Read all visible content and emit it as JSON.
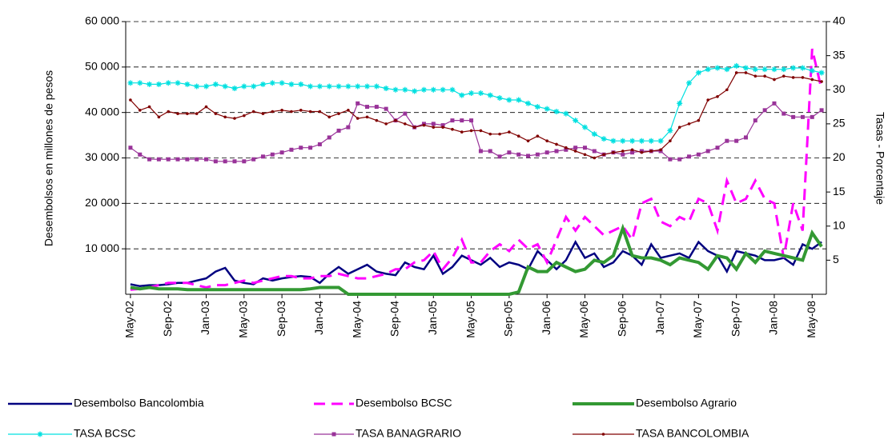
{
  "chart_data": {
    "type": "line",
    "ylabel": "Desembolsos en millones de pesos",
    "y2label": "Tasas - Porcentaje",
    "categories": [
      "May-02",
      null,
      null,
      null,
      "Sep-02",
      null,
      null,
      null,
      "Jan-03",
      null,
      null,
      null,
      "May-03",
      null,
      null,
      null,
      "Sep-03",
      null,
      null,
      null,
      "Jan-04",
      null,
      null,
      null,
      "May-04",
      null,
      null,
      null,
      "Sep-04",
      null,
      null,
      null,
      "Jan-05",
      null,
      null,
      null,
      "May-05",
      null,
      null,
      null,
      "Sep-05",
      null,
      null,
      null,
      "Jan-06",
      null,
      null,
      null,
      "May-06",
      null,
      null,
      null,
      "Sep-06",
      null,
      null,
      null,
      "Jan-07",
      null,
      null,
      null,
      "May-07",
      null,
      null,
      null,
      "Sep-07",
      null,
      null,
      null,
      "Jan-08",
      null,
      null,
      null,
      "May-08",
      null
    ],
    "ylim": [
      0,
      60000
    ],
    "yticks": [
      {
        "value": 10000,
        "label": "10 000"
      },
      {
        "value": 20000,
        "label": "20 000"
      },
      {
        "value": 30000,
        "label": "30 000"
      },
      {
        "value": 40000,
        "label": "40 000"
      },
      {
        "value": 50000,
        "label": "50 000"
      },
      {
        "value": 60000,
        "label": "60 000"
      }
    ],
    "y2lim": [
      0,
      40
    ],
    "y2ticks": [
      5,
      10,
      15,
      20,
      25,
      30,
      35,
      40
    ],
    "grid": true,
    "legend": "bottom",
    "series": [
      {
        "name": "Desembolso Bancolombia",
        "color": "#000080",
        "dash": "solid",
        "marker": "none",
        "values": [
          2200,
          1800,
          2000,
          2000,
          2200,
          2500,
          2500,
          3000,
          3500,
          5000,
          5800,
          3000,
          2500,
          2200,
          3500,
          3000,
          3500,
          3800,
          4000,
          3800,
          2500,
          4500,
          6000,
          4500,
          5500,
          6500,
          5000,
          4500,
          4200,
          7000,
          6000,
          5500,
          8500,
          4500,
          6000,
          8500,
          7500,
          6500,
          8000,
          6000,
          7000,
          6500,
          5500,
          9500,
          7500,
          5500,
          7500,
          11500,
          8000,
          9000,
          6000,
          7000,
          9500,
          8500,
          6500,
          11000,
          8000,
          8500,
          9000,
          8000,
          11500,
          9500,
          8500,
          5000,
          9500,
          9000,
          8500,
          7500,
          7500,
          8000,
          6500,
          11000,
          10000,
          11500
        ]
      },
      {
        "name": "Desembolso BCSC",
        "color": "#ff00ff",
        "dash": "dashed",
        "marker": "none",
        "values": [
          1000,
          1200,
          1500,
          2000,
          2500,
          2500,
          2500,
          2000,
          1500,
          2000,
          2000,
          2500,
          3000,
          2500,
          3000,
          3500,
          4000,
          4000,
          3500,
          3500,
          4000,
          4000,
          4500,
          4000,
          3500,
          3500,
          4000,
          4500,
          5500,
          5500,
          7000,
          7500,
          9500,
          5500,
          8000,
          12000,
          7000,
          7000,
          9500,
          11000,
          9500,
          12000,
          10000,
          11000,
          7000,
          12000,
          17000,
          14000,
          17000,
          15000,
          13000,
          14000,
          15000,
          12000,
          20000,
          21000,
          16000,
          15000,
          17000,
          16000,
          21000,
          20000,
          14000,
          25000,
          20000,
          21000,
          25000,
          21000,
          20000,
          8000,
          20000,
          14000,
          54000,
          45000
        ]
      },
      {
        "name": "Desembolso Agrario",
        "color": "#339933",
        "dash": "solid",
        "marker": "none",
        "values": [
          1500,
          1200,
          1500,
          1200,
          1200,
          1200,
          1000,
          1000,
          1000,
          1000,
          1000,
          1000,
          1000,
          1000,
          1000,
          1000,
          1000,
          1000,
          1000,
          1200,
          1500,
          1500,
          1500,
          0,
          0,
          0,
          0,
          0,
          0,
          0,
          0,
          0,
          0,
          0,
          0,
          0,
          0,
          0,
          0,
          0,
          0,
          500,
          6000,
          5000,
          5000,
          7000,
          6000,
          5000,
          5500,
          7500,
          7000,
          8500,
          14500,
          8500,
          8000,
          8000,
          7500,
          6500,
          8000,
          7500,
          7000,
          5500,
          8500,
          8000,
          5500,
          9000,
          7000,
          9500,
          9000,
          8500,
          8000,
          7500,
          13500,
          10500
        ]
      },
      {
        "name": "TASA BCSC",
        "color": "#00e0e0",
        "dash": "solid",
        "marker": "star",
        "axis": "y2",
        "values": [
          31,
          31,
          30.8,
          30.8,
          31,
          31,
          30.8,
          30.5,
          30.5,
          30.8,
          30.5,
          30.2,
          30.5,
          30.5,
          30.8,
          31,
          31,
          30.8,
          30.8,
          30.5,
          30.5,
          30.5,
          30.5,
          30.5,
          30.5,
          30.5,
          30.5,
          30.2,
          30,
          30,
          29.8,
          30,
          30,
          30,
          30,
          29.2,
          29.5,
          29.5,
          29.2,
          28.8,
          28.5,
          28.5,
          28,
          27.5,
          27.2,
          26.8,
          26.5,
          25.5,
          24.5,
          23.5,
          22.8,
          22.5,
          22.5,
          22.5,
          22.5,
          22.5,
          22.5,
          24,
          28,
          31,
          32.5,
          33,
          33.2,
          33,
          33.5,
          33.2,
          33,
          33,
          33,
          33,
          33.2,
          33.2,
          32.8,
          32.5
        ]
      },
      {
        "name": "TASA BANAGRARIO",
        "color": "#993399",
        "dash": "solid",
        "marker": "square",
        "axis": "y2",
        "values": [
          21.5,
          20.5,
          19.8,
          19.8,
          19.8,
          19.8,
          19.8,
          19.8,
          19.8,
          19.5,
          19.5,
          19.5,
          19.5,
          19.8,
          20.2,
          20.5,
          20.8,
          21.2,
          21.5,
          21.5,
          22,
          23,
          24,
          24.5,
          28,
          27.5,
          27.5,
          27.2,
          25.5,
          26.5,
          24.5,
          25,
          25,
          24.8,
          25.5,
          25.5,
          25.5,
          21,
          21,
          20.2,
          20.8,
          20.5,
          20.3,
          20.5,
          20.8,
          21,
          21.2,
          21.5,
          21.5,
          21,
          20.5,
          20.8,
          20.5,
          20.8,
          21,
          21,
          21,
          19.8,
          19.8,
          20.2,
          20.5,
          21,
          21.5,
          22.5,
          22.5,
          23,
          25.5,
          27,
          28,
          26.5,
          26,
          26,
          26,
          27
        ]
      },
      {
        "name": "TASA BANCOLOMBIA",
        "color": "#800000",
        "dash": "solid",
        "marker": "dot",
        "axis": "y2",
        "values": [
          28.5,
          27,
          27.5,
          26,
          26.8,
          26.5,
          26.5,
          26.5,
          27.5,
          26.5,
          26,
          25.8,
          26.2,
          26.8,
          26.5,
          26.8,
          27,
          26.8,
          27,
          26.8,
          26.8,
          26,
          26.5,
          27,
          25.8,
          26,
          25.5,
          25,
          25.5,
          25,
          24.5,
          24.8,
          24.5,
          24.5,
          24.2,
          23.8,
          24,
          24,
          23.5,
          23.5,
          23.8,
          23.2,
          22.5,
          23.2,
          22.5,
          22,
          21.5,
          21,
          20.5,
          20,
          20.5,
          20.8,
          21,
          21.2,
          20.8,
          21,
          21.2,
          22.5,
          24.5,
          25,
          25.5,
          28.5,
          29,
          30,
          32.5,
          32.5,
          32,
          32,
          31.5,
          32,
          31.8,
          31.8,
          31.5,
          31.2
        ]
      }
    ]
  }
}
